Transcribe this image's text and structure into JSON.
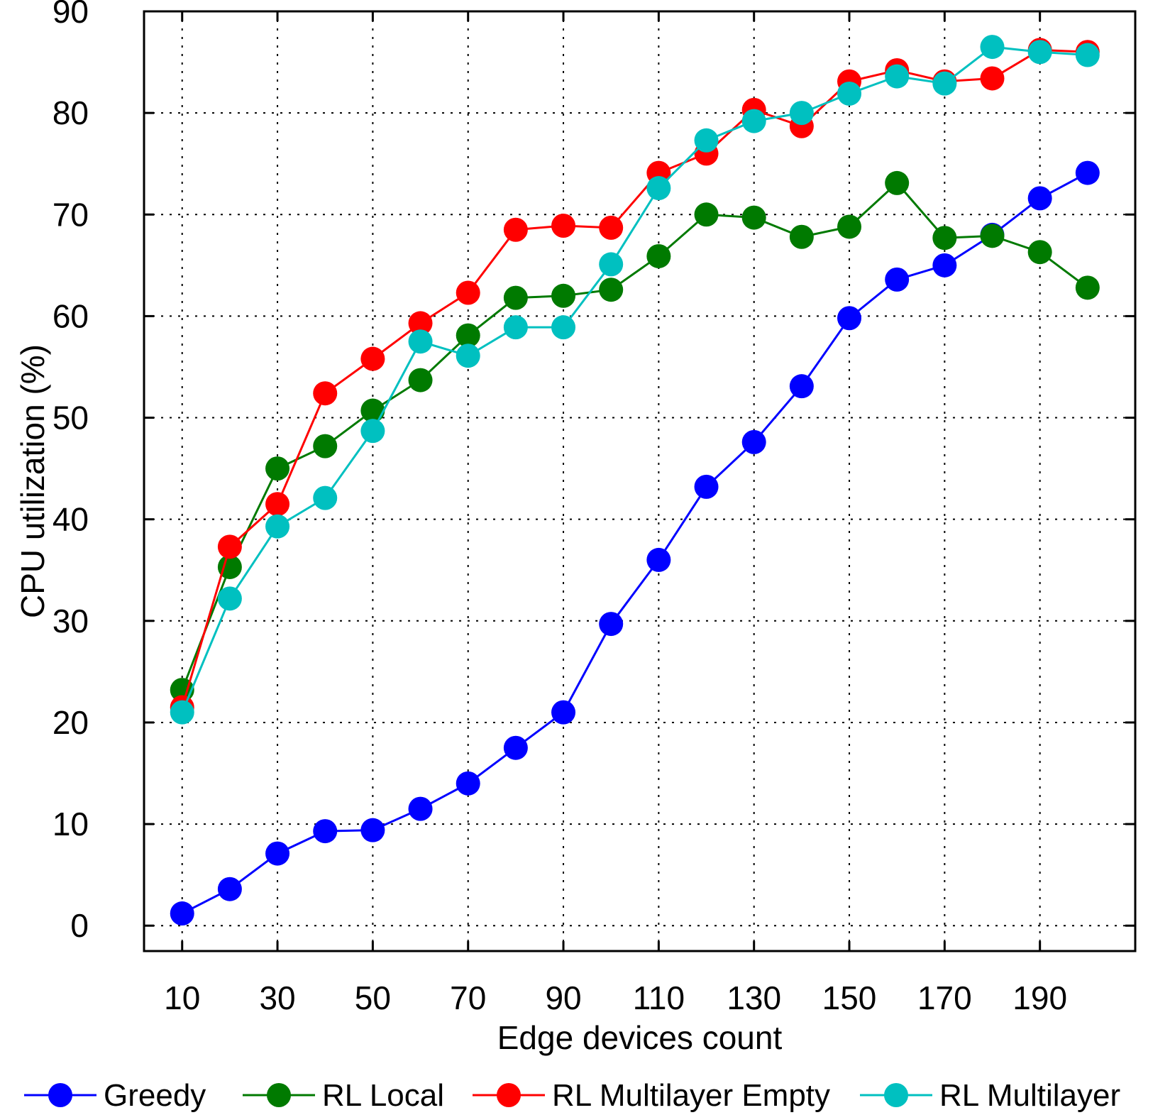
{
  "chart_data": {
    "type": "line",
    "xlabel": "Edge devices count",
    "ylabel": "CPU utilization (%)",
    "x": [
      10,
      20,
      30,
      40,
      50,
      60,
      70,
      80,
      90,
      100,
      110,
      120,
      130,
      140,
      150,
      160,
      170,
      180,
      190,
      200
    ],
    "xlim": [
      2,
      210
    ],
    "ylim": [
      -2.5,
      90
    ],
    "xticks": [
      10,
      30,
      50,
      70,
      90,
      110,
      130,
      150,
      170,
      190
    ],
    "yticks": [
      0,
      10,
      20,
      30,
      40,
      50,
      60,
      70,
      80,
      90
    ],
    "grid": true,
    "legend_position": "bottom",
    "series": [
      {
        "name": "Greedy",
        "color": "#0000ff",
        "values": [
          1.2,
          3.6,
          7.1,
          9.3,
          9.4,
          11.5,
          14.0,
          17.5,
          21.0,
          29.7,
          36.0,
          43.2,
          47.6,
          53.1,
          59.8,
          63.6,
          65.0,
          68.0,
          71.6,
          74.1
        ]
      },
      {
        "name": "RL Local",
        "color": "#007a00",
        "values": [
          23.2,
          35.3,
          45.0,
          47.2,
          50.7,
          53.7,
          58.1,
          61.8,
          62.0,
          62.6,
          65.9,
          70.0,
          69.7,
          67.8,
          68.8,
          73.1,
          67.7,
          67.9,
          66.3,
          62.8
        ]
      },
      {
        "name": "RL Multilayer Empty",
        "color": "#ff0000",
        "values": [
          21.5,
          37.3,
          41.5,
          52.4,
          55.8,
          59.3,
          62.3,
          68.5,
          68.9,
          68.7,
          74.1,
          76.0,
          80.3,
          78.7,
          83.1,
          84.2,
          83.1,
          83.4,
          86.2,
          86.0
        ]
      },
      {
        "name": "RL Multilayer",
        "color": "#00c0c0",
        "values": [
          21.0,
          32.2,
          39.3,
          42.1,
          48.7,
          57.5,
          56.1,
          58.9,
          58.9,
          65.1,
          72.6,
          77.3,
          79.2,
          80.0,
          81.9,
          83.6,
          82.9,
          86.5,
          86.0,
          85.7
        ]
      }
    ]
  }
}
